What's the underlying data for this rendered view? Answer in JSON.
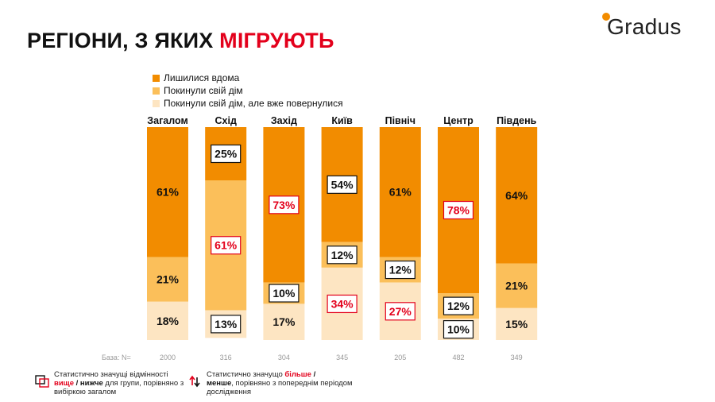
{
  "title": {
    "main": "РЕГІОНИ, З ЯКИХ",
    "accent": "МІГРУЮТЬ"
  },
  "brand": {
    "name": "Gradus"
  },
  "colors": {
    "stayed": "#f28c00",
    "left": "#fbbf5a",
    "returned": "#fde5c2",
    "significant": "#e3001b",
    "text": "#111111"
  },
  "legend": [
    "Лишилися вдома",
    "Покинули свій дім",
    "Покинули свій дім, але вже повернулися"
  ],
  "base_label": "База: N=",
  "footnotes": {
    "significance": {
      "line1": "Статистично значущі відмінності",
      "higher": "вище",
      "sep": " / ",
      "lower": "нижче",
      "rest": " для групи, порівняно з вибіркою загалом"
    },
    "trend": {
      "line1": "Статистично значущо ",
      "more": "більше",
      "sep": " / ",
      "less": "менше",
      "rest": ", порівняно з попереднім періодом дослідження"
    }
  },
  "chart_data": {
    "type": "bar",
    "stacked": true,
    "percent": true,
    "title": "РЕГІОНИ, З ЯКИХ МІГРУЮТЬ",
    "categories": [
      "Загалом",
      "Схід",
      "Захід",
      "Київ",
      "Північ",
      "Центр",
      "Південь"
    ],
    "bases": [
      "2000",
      "316",
      "304",
      "345",
      "205",
      "482",
      "349"
    ],
    "series": [
      {
        "name": "Лишилися вдома",
        "values": [
          61,
          25,
          73,
          54,
          61,
          78,
          64
        ],
        "labels": [
          "61%",
          "25%",
          "73%",
          "54%",
          "61%",
          "78%",
          "64%"
        ],
        "marker": [
          "none",
          "lower",
          "higher",
          "lower",
          "none",
          "higher",
          "none"
        ]
      },
      {
        "name": "Покинули свій дім",
        "values": [
          21,
          61,
          10,
          12,
          12,
          12,
          21
        ],
        "labels": [
          "21%",
          "61%",
          "10%",
          "12%",
          "12%",
          "12%",
          "21%"
        ],
        "marker": [
          "none",
          "higher",
          "lower",
          "lower",
          "lower",
          "lower",
          "none"
        ]
      },
      {
        "name": "Покинули свій дім, але вже повернулися",
        "values": [
          18,
          13,
          17,
          34,
          27,
          10,
          15
        ],
        "labels": [
          "18%",
          "13%",
          "17%",
          "34%",
          "27%",
          "10%",
          "15%"
        ],
        "marker": [
          "none",
          "lower",
          "none",
          "higher",
          "higher",
          "lower",
          "none"
        ]
      }
    ],
    "ylim": [
      0,
      100
    ],
    "legend_position": "top-left"
  }
}
